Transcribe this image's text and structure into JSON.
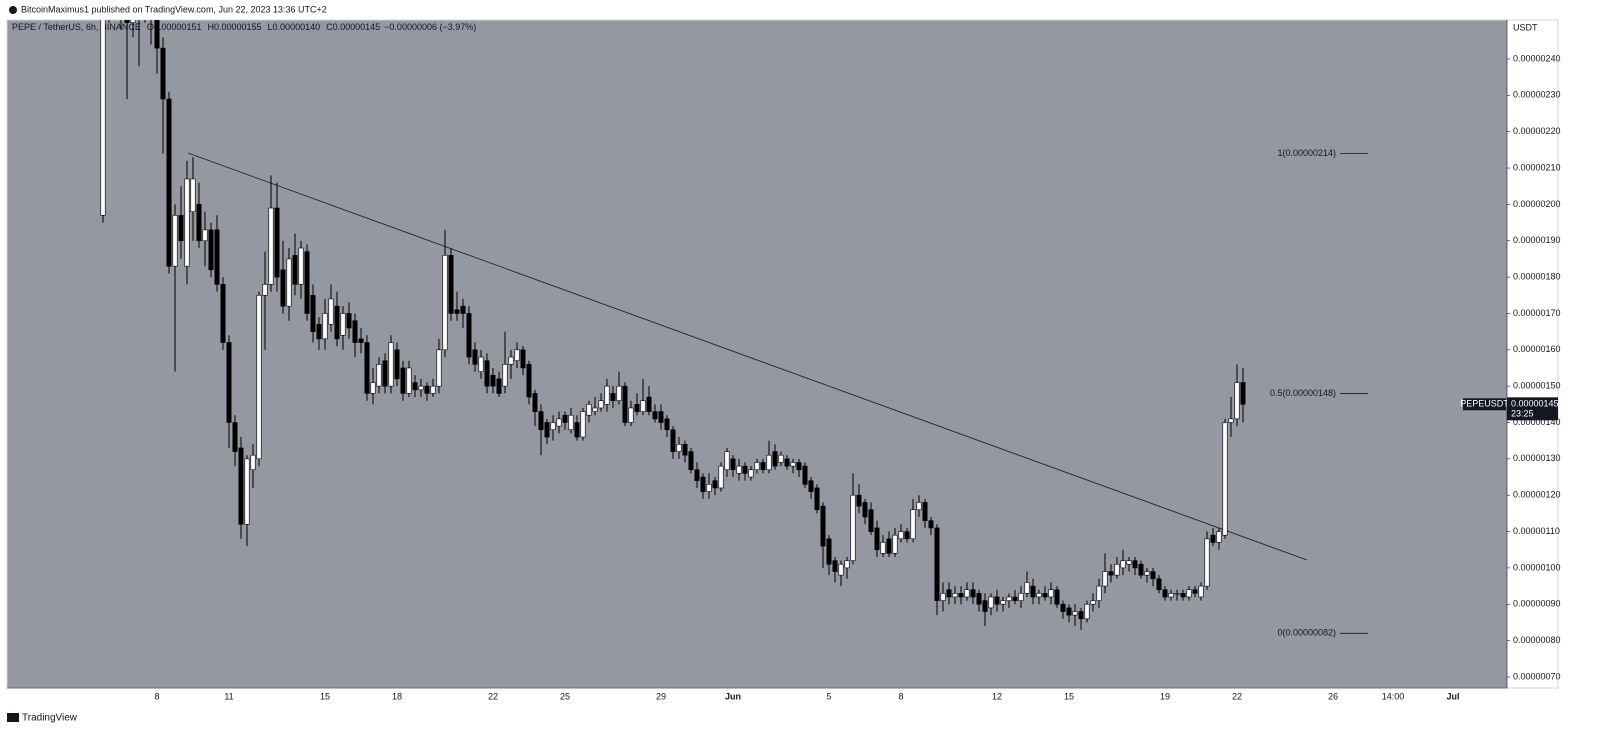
{
  "header": {
    "publisher": "BitcoinMaximus1 published on TradingView.com, Jun 22, 2023 13:36 UTC+2"
  },
  "footer": {
    "brand": "TradingView"
  },
  "chart_data": {
    "type": "candlestick",
    "symbol": "PEPE / TetherUS, 6h, BINANCE",
    "legend": [
      {
        "key": "O",
        "text": "0.00000151"
      },
      {
        "key": "H",
        "text": "0.00000155"
      },
      {
        "key": "L",
        "text": "0.00000140"
      },
      {
        "key": "C",
        "text": "0.00000145"
      }
    ],
    "change": "−0.00000006 (−3.97%)",
    "axis_unit": "USDT",
    "up_color": "#ffffff",
    "down_color": "#000000",
    "background": "#9598a1",
    "categories": [
      null,
      null,
      null,
      null,
      null,
      null,
      null,
      null,
      null,
      "8",
      null,
      null,
      null,
      null,
      null,
      null,
      null,
      null,
      null,
      null,
      null,
      "11",
      null,
      null,
      null,
      null,
      null,
      null,
      null,
      null,
      null,
      null,
      null,
      null,
      null,
      null,
      null,
      "15",
      null,
      null,
      null,
      null,
      null,
      null,
      null,
      null,
      null,
      null,
      null,
      "18",
      null,
      null,
      null,
      null,
      null,
      null,
      null,
      null,
      null,
      null,
      null,
      null,
      null,
      null,
      null,
      "22",
      null,
      null,
      null,
      null,
      null,
      null,
      null,
      null,
      null,
      null,
      null,
      "25",
      null,
      null,
      null,
      null,
      null,
      null,
      null,
      null,
      null,
      null,
      null,
      null,
      null,
      null,
      null,
      "29",
      null,
      null,
      null,
      null,
      null,
      null,
      null,
      null,
      null,
      null,
      null,
      "Jun",
      null,
      null,
      null,
      null,
      null,
      null,
      null,
      null,
      null,
      null,
      null,
      null,
      null,
      null,
      null,
      "5",
      null,
      null,
      null,
      null,
      null,
      null,
      null,
      null,
      null,
      null,
      null,
      "8",
      null,
      null,
      null,
      null,
      null,
      null,
      null,
      null,
      null,
      null,
      null,
      null,
      null,
      null,
      null,
      "12",
      null,
      null,
      null,
      null,
      null,
      null,
      null,
      null,
      null,
      null,
      null,
      "15",
      null,
      null,
      null,
      null,
      null,
      null,
      null,
      null,
      null,
      null,
      null,
      null,
      null,
      null,
      null,
      "19",
      null,
      null,
      null,
      null,
      null,
      null,
      null,
      null,
      null,
      null,
      null,
      "22",
      null,
      null,
      null,
      null,
      null,
      null,
      null,
      null,
      null,
      null,
      null,
      null,
      null,
      null,
      null,
      "26",
      null,
      null,
      null,
      null,
      null,
      null,
      null,
      null,
      null,
      "14:00",
      null,
      null,
      null,
      null,
      null,
      null,
      null,
      null,
      null,
      "Jul",
      null,
      null,
      null,
      null,
      null,
      null,
      null
    ],
    "open": [
      1.97e-06,
      2.58e-06,
      2.62e-06,
      2.56e-06,
      2.52e-06,
      2.5e-06,
      2.58e-06,
      2.6e-06,
      2.62e-06,
      2.54e-06,
      2.43e-06,
      2.29e-06,
      1.83e-06,
      1.97e-06,
      1.83e-06,
      1.98e-06,
      2e-06,
      1.9e-06,
      1.93e-06,
      1.93e-06,
      1.78e-06,
      1.62e-06,
      1.4e-06,
      1.33e-06,
      1.12e-06,
      1.27e-06,
      1.3e-06,
      1.75e-06,
      1.78e-06,
      1.99e-06,
      1.82e-06,
      1.72e-06,
      1.86e-06,
      1.78e-06,
      1.87e-06,
      1.75e-06,
      1.67e-06,
      1.63e-06,
      1.67e-06,
      1.72e-06,
      1.64e-06,
      1.7e-06,
      1.68e-06,
      1.63e-06,
      1.62e-06,
      1.48e-06,
      1.5e-06,
      1.57e-06,
      1.5e-06,
      1.6e-06,
      1.55e-06,
      1.48e-06,
      1.51e-06,
      1.49e-06,
      1.5e-06,
      1.48e-06,
      1.5e-06,
      1.6e-06,
      1.86e-06,
      1.71e-06,
      1.72e-06,
      1.7e-06,
      1.6e-06,
      1.54e-06,
      1.57e-06,
      1.53e-06,
      1.52e-06,
      1.5e-06,
      1.56e-06,
      1.57e-06,
      1.6e-06,
      1.56e-06,
      1.48e-06,
      1.43e-06,
      1.4e-06,
      1.38e-06,
      1.39e-06,
      1.42e-06,
      1.38e-06,
      1.4e-06,
      1.36e-06,
      1.42e-06,
      1.43e-06,
      1.44e-06,
      1.45e-06,
      1.48e-06,
      1.46e-06,
      1.5e-06,
      1.4e-06,
      1.45e-06,
      1.43e-06,
      1.47e-06,
      1.43e-06,
      1.43e-06,
      1.41e-06,
      1.38e-06,
      1.32e-06,
      1.34e-06,
      1.32e-06,
      1.27e-06,
      1.25e-06,
      1.21e-06,
      1.24e-06,
      1.22e-06,
      1.27e-06,
      1.3e-06,
      1.26e-06,
      1.28e-06,
      1.25e-06,
      1.27e-06,
      1.29e-06,
      1.27e-06,
      1.32e-06,
      1.29e-06,
      1.3e-06,
      1.28e-06,
      1.29e-06,
      1.28e-06,
      1.24e-06,
      1.22e-06,
      1.17e-06,
      1.08e-06,
      1.02e-06,
      9.8e-07,
      1e-06,
      1.02e-06,
      1.2e-06,
      1.18e-06,
      1.16e-06,
      1.11e-06,
      1.04e-06,
      1.08e-06,
      1.04e-06,
      1.08e-06,
      1.1e-06,
      1.08e-06,
      1.16e-06,
      1.18e-06,
      1.13e-06,
      1.11e-06,
      9.1e-07,
      9.4e-07,
      9.2e-07,
      9.3e-07,
      9.2e-07,
      9.4e-07,
      9.3e-07,
      9.1e-07,
      8.9e-07,
      9.2e-07,
      9e-07,
      9.1e-07,
      9.2e-07,
      9.1e-07,
      9.3e-07,
      9.5e-07,
      9.2e-07,
      9.3e-07,
      9.2e-07,
      9.4e-07,
      9e-07,
      8.9e-07,
      8.7e-07,
      8.8e-07,
      8.6e-07,
      9e-07,
      9.1e-07,
      9.5e-07,
      9.9e-07,
      9.8e-07,
      1e-06,
      1.01e-06,
      1.02e-06,
      1.01e-06,
      9.8e-07,
      9.9e-07,
      9.7e-07,
      9.4e-07,
      9.2e-07,
      9.3e-07,
      9.3e-07,
      9.2e-07,
      9.4e-07,
      9.2e-07,
      9.5e-07,
      1.09e-06,
      1.07e-06,
      1.09e-06,
      1.4e-06,
      1.41e-06,
      1.51e-06,
      null,
      null,
      null,
      null,
      null,
      null,
      null,
      null,
      null,
      null,
      null,
      null,
      null,
      null,
      null,
      null,
      null,
      null,
      null,
      null,
      null,
      null,
      null,
      null,
      null,
      null,
      null,
      null,
      null,
      null,
      null,
      null,
      null,
      null,
      null,
      null,
      null,
      null,
      null,
      null,
      null,
      null
    ],
    "high": [
      2.62e-06,
      2.68e-06,
      2.7e-06,
      2.62e-06,
      2.58e-06,
      2.62e-06,
      2.66e-06,
      2.68e-06,
      2.66e-06,
      2.57e-06,
      2.46e-06,
      2.31e-06,
      2e-06,
      2.05e-06,
      2.12e-06,
      2.13e-06,
      2.06e-06,
      1.98e-06,
      1.95e-06,
      1.97e-06,
      1.8e-06,
      1.64e-06,
      1.42e-06,
      1.36e-06,
      1.31e-06,
      1.34e-06,
      1.76e-06,
      1.87e-06,
      2.08e-06,
      2.06e-06,
      1.9e-06,
      1.88e-06,
      1.92e-06,
      1.9e-06,
      1.89e-06,
      1.78e-06,
      1.69e-06,
      1.74e-06,
      1.78e-06,
      1.76e-06,
      1.72e-06,
      1.73e-06,
      1.7e-06,
      1.66e-06,
      1.64e-06,
      1.55e-06,
      1.58e-06,
      1.59e-06,
      1.64e-06,
      1.62e-06,
      1.57e-06,
      1.57e-06,
      1.53e-06,
      1.52e-06,
      1.51e-06,
      1.52e-06,
      1.63e-06,
      1.93e-06,
      1.88e-06,
      1.76e-06,
      1.74e-06,
      1.72e-06,
      1.62e-06,
      1.6e-06,
      1.59e-06,
      1.55e-06,
      1.54e-06,
      1.65e-06,
      1.6e-06,
      1.62e-06,
      1.61e-06,
      1.57e-06,
      1.49e-06,
      1.45e-06,
      1.41e-06,
      1.42e-06,
      1.43e-06,
      1.43e-06,
      1.44e-06,
      1.42e-06,
      1.44e-06,
      1.46e-06,
      1.47e-06,
      1.48e-06,
      1.52e-06,
      1.5e-06,
      1.54e-06,
      1.51e-06,
      1.46e-06,
      1.48e-06,
      1.52e-06,
      1.5e-06,
      1.45e-06,
      1.45e-06,
      1.42e-06,
      1.39e-06,
      1.36e-06,
      1.35e-06,
      1.33e-06,
      1.29e-06,
      1.26e-06,
      1.26e-06,
      1.25e-06,
      1.29e-06,
      1.33e-06,
      1.31e-06,
      1.3e-06,
      1.29e-06,
      1.28e-06,
      1.3e-06,
      1.3e-06,
      1.35e-06,
      1.34e-06,
      1.32e-06,
      1.31e-06,
      1.3e-06,
      1.3e-06,
      1.29e-06,
      1.25e-06,
      1.23e-06,
      1.18e-06,
      1.09e-06,
      1.03e-06,
      1.02e-06,
      1.03e-06,
      1.26e-06,
      1.23e-06,
      1.19e-06,
      1.18e-06,
      1.13e-06,
      1.09e-06,
      1.1e-06,
      1.11e-06,
      1.12e-06,
      1.11e-06,
      1.19e-06,
      1.2e-06,
      1.19e-06,
      1.14e-06,
      1.12e-06,
      9.6e-07,
      9.6e-07,
      9.5e-07,
      9.5e-07,
      9.6e-07,
      9.6e-07,
      9.4e-07,
      9.3e-07,
      9.3e-07,
      9.4e-07,
      9.2e-07,
      9.3e-07,
      9.4e-07,
      9.5e-07,
      9.9e-07,
      9.7e-07,
      9.4e-07,
      9.5e-07,
      9.6e-07,
      9.5e-07,
      9.1e-07,
      9e-07,
      9e-07,
      8.9e-07,
      9.1e-07,
      9.3e-07,
      9.7e-07,
      1.04e-06,
      1.01e-06,
      1.03e-06,
      1.05e-06,
      1.03e-06,
      1.03e-06,
      1.02e-06,
      1e-06,
      1e-06,
      9.8e-07,
      9.5e-07,
      9.4e-07,
      9.4e-07,
      9.4e-07,
      9.5e-07,
      9.5e-07,
      9.6e-07,
      1.1e-06,
      1.11e-06,
      1.11e-06,
      1.41e-06,
      1.47e-06,
      1.56e-06,
      1.55e-06,
      null,
      null,
      null,
      null,
      null,
      null,
      null,
      null,
      null,
      null,
      null,
      null,
      null,
      null,
      null,
      null,
      null,
      null,
      null,
      null,
      null,
      null,
      null,
      null,
      null,
      null,
      null,
      null,
      null,
      null,
      null,
      null,
      null,
      null,
      null,
      null,
      null,
      null,
      null,
      null,
      null,
      null
    ],
    "low": [
      1.95e-06,
      2.5e-06,
      2.52e-06,
      2.48e-06,
      2.29e-06,
      2.46e-06,
      2.38e-06,
      2.5e-06,
      2.44e-06,
      2.36e-06,
      2.14e-06,
      1.81e-06,
      1.54e-06,
      1.85e-06,
      1.78e-06,
      1.9e-06,
      1.88e-06,
      1.83e-06,
      1.8e-06,
      1.76e-06,
      1.6e-06,
      1.33e-06,
      1.28e-06,
      1.08e-06,
      1.06e-06,
      1.22e-06,
      1.28e-06,
      1.6e-06,
      1.76e-06,
      1.76e-06,
      1.7e-06,
      1.68e-06,
      1.75e-06,
      1.74e-06,
      1.68e-06,
      1.62e-06,
      1.6e-06,
      1.6e-06,
      1.65e-06,
      1.61e-06,
      1.6e-06,
      1.63e-06,
      1.58e-06,
      1.59e-06,
      1.46e-06,
      1.45e-06,
      1.48e-06,
      1.48e-06,
      1.48e-06,
      1.5e-06,
      1.46e-06,
      1.47e-06,
      1.47e-06,
      1.47e-06,
      1.46e-06,
      1.47e-06,
      1.48e-06,
      1.58e-06,
      1.68e-06,
      1.68e-06,
      1.66e-06,
      1.56e-06,
      1.54e-06,
      1.52e-06,
      1.48e-06,
      1.48e-06,
      1.47e-06,
      1.48e-06,
      1.52e-06,
      1.55e-06,
      1.53e-06,
      1.45e-06,
      1.39e-06,
      1.31e-06,
      1.34e-06,
      1.35e-06,
      1.37e-06,
      1.38e-06,
      1.37e-06,
      1.35e-06,
      1.35e-06,
      1.4e-06,
      1.42e-06,
      1.43e-06,
      1.43e-06,
      1.44e-06,
      1.45e-06,
      1.39e-06,
      1.39e-06,
      1.42e-06,
      1.42e-06,
      1.42e-06,
      1.4e-06,
      1.38e-06,
      1.36e-06,
      1.3e-06,
      1.3e-06,
      1.29e-06,
      1.26e-06,
      1.22e-06,
      1.19e-06,
      1.19e-06,
      1.2e-06,
      1.21e-06,
      1.25e-06,
      1.25e-06,
      1.24e-06,
      1.24e-06,
      1.24e-06,
      1.26e-06,
      1.26e-06,
      1.26e-06,
      1.27e-06,
      1.28e-06,
      1.27e-06,
      1.26e-06,
      1.25e-06,
      1.22e-06,
      1.19e-06,
      1.15e-06,
      1e-06,
      9.8e-07,
      9.6e-07,
      9.5e-07,
      9.7e-07,
      1.01e-06,
      1.15e-06,
      1.12e-06,
      1.09e-06,
      1.03e-06,
      1.03e-06,
      1.03e-06,
      1.03e-06,
      1.07e-06,
      1.07e-06,
      1.07e-06,
      1.14e-06,
      1.11e-06,
      1.09e-06,
      8.7e-07,
      8.8e-07,
      9e-07,
      9e-07,
      9e-07,
      9.1e-07,
      9e-07,
      8.8e-07,
      8.4e-07,
      8.7e-07,
      8.8e-07,
      8.8e-07,
      8.9e-07,
      9e-07,
      8.9e-07,
      9.2e-07,
      9e-07,
      9e-07,
      9.1e-07,
      9e-07,
      8.9e-07,
      8.6e-07,
      8.5e-07,
      8.4e-07,
      8.3e-07,
      8.5e-07,
      8.8e-07,
      8.9e-07,
      9.3e-07,
      9.6e-07,
      9.7e-07,
      9.8e-07,
      9.9e-07,
      9.8e-07,
      9.7e-07,
      9.6e-07,
      9.5e-07,
      9.3e-07,
      9.1e-07,
      9.1e-07,
      9.1e-07,
      9.1e-07,
      9.1e-07,
      9.2e-07,
      9.1e-07,
      9.4e-07,
      1.06e-06,
      1.05e-06,
      1.08e-06,
      1.36e-06,
      1.39e-06,
      1.4e-06,
      null,
      null,
      null,
      null,
      null,
      null,
      null,
      null,
      null,
      null,
      null,
      null,
      null,
      null,
      null,
      null,
      null,
      null,
      null,
      null,
      null,
      null,
      null,
      null,
      null,
      null,
      null,
      null,
      null,
      null,
      null,
      null,
      null,
      null,
      null,
      null,
      null,
      null,
      null,
      null,
      null,
      null
    ],
    "close": [
      2.58e-06,
      2.62e-06,
      2.56e-06,
      2.52e-06,
      2.5e-06,
      2.58e-06,
      2.6e-06,
      2.62e-06,
      2.54e-06,
      2.43e-06,
      2.29e-06,
      1.83e-06,
      1.97e-06,
      1.9e-06,
      2.07e-06,
      2.07e-06,
      1.9e-06,
      1.93e-06,
      1.82e-06,
      1.78e-06,
      1.62e-06,
      1.4e-06,
      1.32e-06,
      1.12e-06,
      1.3e-06,
      1.31e-06,
      1.75e-06,
      1.78e-06,
      1.99e-06,
      1.8e-06,
      1.72e-06,
      1.85e-06,
      1.78e-06,
      1.88e-06,
      1.7e-06,
      1.65e-06,
      1.63e-06,
      1.7e-06,
      1.74e-06,
      1.63e-06,
      1.7e-06,
      1.66e-06,
      1.62e-06,
      1.62e-06,
      1.48e-06,
      1.51e-06,
      1.56e-06,
      1.5e-06,
      1.62e-06,
      1.52e-06,
      1.48e-06,
      1.55e-06,
      1.49e-06,
      1.5e-06,
      1.48e-06,
      1.5e-06,
      1.6e-06,
      1.86e-06,
      1.7e-06,
      1.7e-06,
      1.7e-06,
      1.58e-06,
      1.56e-06,
      1.58e-06,
      1.5e-06,
      1.5e-06,
      1.48e-06,
      1.56e-06,
      1.58e-06,
      1.6e-06,
      1.55e-06,
      1.47e-06,
      1.43e-06,
      1.38e-06,
      1.36e-06,
      1.4e-06,
      1.41e-06,
      1.4e-06,
      1.42e-06,
      1.36e-06,
      1.43e-06,
      1.45e-06,
      1.44e-06,
      1.46e-06,
      1.5e-06,
      1.46e-06,
      1.5e-06,
      1.4e-06,
      1.44e-06,
      1.43e-06,
      1.46e-06,
      1.43e-06,
      1.41e-06,
      1.4e-06,
      1.38e-06,
      1.32e-06,
      1.34e-06,
      1.31e-06,
      1.27e-06,
      1.24e-06,
      1.21e-06,
      1.23e-06,
      1.22e-06,
      1.28e-06,
      1.32e-06,
      1.27e-06,
      1.28e-06,
      1.26e-06,
      1.27e-06,
      1.29e-06,
      1.27e-06,
      1.31e-06,
      1.28e-06,
      1.31e-06,
      1.28e-06,
      1.29e-06,
      1.27e-06,
      1.23e-06,
      1.21e-06,
      1.16e-06,
      1.06e-06,
      1.01e-06,
      9.9e-07,
      1.01e-06,
      1.02e-06,
      1.2e-06,
      1.17e-06,
      1.14e-06,
      1.1e-06,
      1.05e-06,
      1.07e-06,
      1.04e-06,
      1.09e-06,
      1.1e-06,
      1.08e-06,
      1.16e-06,
      1.18e-06,
      1.13e-06,
      1.11e-06,
      9.1e-07,
      9.3e-07,
      9.2e-07,
      9.3e-07,
      9.2e-07,
      9.4e-07,
      9.2e-07,
      9e-07,
      8.8e-07,
      9.2e-07,
      9e-07,
      9.1e-07,
      9.2e-07,
      9.1e-07,
      9.3e-07,
      9.6e-07,
      9.2e-07,
      9.3e-07,
      9.2e-07,
      9.4e-07,
      9e-07,
      8.8e-07,
      8.7e-07,
      8.8e-07,
      8.6e-07,
      9e-07,
      9.1e-07,
      9.5e-07,
      9.9e-07,
      9.8e-07,
      1.01e-06,
      1.02e-06,
      1.02e-06,
      1e-06,
      9.8e-07,
      9.9e-07,
      9.7e-07,
      9.4e-07,
      9.2e-07,
      9.3e-07,
      9.3e-07,
      9.2e-07,
      9.4e-07,
      9.3e-07,
      9.5e-07,
      1.08e-06,
      1.07e-06,
      1.1e-06,
      1.4e-06,
      1.41e-06,
      1.51e-06,
      1.45e-06,
      null,
      null,
      null,
      null,
      null,
      null,
      null,
      null,
      null,
      null,
      null,
      null,
      null,
      null,
      null,
      null,
      null,
      null,
      null,
      null,
      null,
      null,
      null,
      null,
      null,
      null,
      null,
      null,
      null,
      null,
      null,
      null,
      null,
      null,
      null,
      null,
      null,
      null,
      null,
      null,
      null,
      null
    ],
    "ylim": [
      6.696e-07,
      2.5073e-06
    ],
    "yticks": [
      {
        "value": 2.4e-06,
        "label": "0.00000240"
      },
      {
        "value": 2.3e-06,
        "label": "0.00000230"
      },
      {
        "value": 2.2e-06,
        "label": "0.00000220"
      },
      {
        "value": 2.1e-06,
        "label": "0.00000210"
      },
      {
        "value": 2e-06,
        "label": "0.00000200"
      },
      {
        "value": 1.9e-06,
        "label": "0.00000190"
      },
      {
        "value": 1.8e-06,
        "label": "0.00000180"
      },
      {
        "value": 1.7e-06,
        "label": "0.00000170"
      },
      {
        "value": 1.6e-06,
        "label": "0.00000160"
      },
      {
        "value": 1.5e-06,
        "label": "0.00000150"
      },
      {
        "value": 1.4e-06,
        "label": "0.00000140"
      },
      {
        "value": 1.3e-06,
        "label": "0.00000130"
      },
      {
        "value": 1.2e-06,
        "label": "0.00000120"
      },
      {
        "value": 1.1e-06,
        "label": "0.00000110"
      },
      {
        "value": 1e-06,
        "label": "0.00000100"
      },
      {
        "value": 9e-07,
        "label": "0.00000090"
      },
      {
        "value": 8e-07,
        "label": "0.00000080"
      },
      {
        "value": 7e-07,
        "label": "0.00000070"
      }
    ],
    "fib_levels": [
      {
        "value": 2.14e-06,
        "label": "1(0.00000214)"
      },
      {
        "value": 1.48e-06,
        "label": "0.5(0.00000148)"
      },
      {
        "value": 8.2e-07,
        "label": "0(0.00000082)"
      }
    ],
    "price_tag": {
      "symbol": "PEPEUSDT",
      "value": 1.45e-06,
      "label": "0.00000145",
      "countdown": "23:25"
    }
  }
}
